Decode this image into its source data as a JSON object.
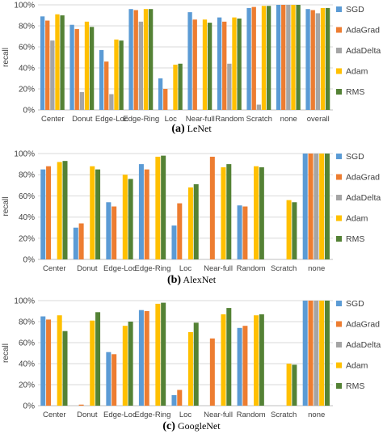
{
  "series_names": [
    "SGD",
    "AdaGrad",
    "AdaDelta",
    "Adam",
    "RMS"
  ],
  "colors": {
    "SGD": "#5b9bd5",
    "AdaGrad": "#ed7d31",
    "AdaDelta": "#a5a5a5",
    "Adam": "#ffc000",
    "RMS": "#548235",
    "grid": "#d9d9d9",
    "axis": "#bfbfbf",
    "text": "#404040"
  },
  "chart_data": [
    {
      "type": "bar",
      "caption_letter": "(a)",
      "caption_name": "LeNet",
      "ylabel": "recall",
      "ylim": [
        0,
        100
      ],
      "yticks": [
        "0%",
        "20%",
        "40%",
        "60%",
        "80%",
        "100%"
      ],
      "grid": true,
      "legend_position": "right",
      "categories": [
        "Center",
        "Donut",
        "Edge-Loc",
        "Edge-Ring",
        "Loc",
        "Near-full",
        "Random",
        "Scratch",
        "none",
        "overall"
      ],
      "series": [
        {
          "name": "SGD",
          "values": [
            89,
            81,
            57,
            96,
            30,
            93,
            88,
            97,
            100,
            96
          ]
        },
        {
          "name": "AdaGrad",
          "values": [
            85,
            77,
            46,
            95,
            20,
            86,
            84,
            98,
            100,
            95
          ]
        },
        {
          "name": "AdaDelta",
          "values": [
            66,
            17,
            15,
            84,
            0,
            0,
            44,
            5,
            100,
            92
          ]
        },
        {
          "name": "Adam",
          "values": [
            91,
            84,
            67,
            96,
            43,
            86,
            88,
            99,
            100,
            97
          ]
        },
        {
          "name": "RMS",
          "values": [
            90,
            79,
            66,
            96,
            44,
            83,
            87,
            99,
            100,
            97
          ]
        }
      ]
    },
    {
      "type": "bar",
      "caption_letter": "(b)",
      "caption_name": "AlexNet",
      "ylabel": "recall",
      "ylim": [
        0,
        100
      ],
      "yticks": [
        "0%",
        "20%",
        "40%",
        "60%",
        "80%",
        "100%"
      ],
      "grid": true,
      "legend_position": "right",
      "categories": [
        "Center",
        "Donut",
        "Edge-Loc",
        "Edge-Ring",
        "Loc",
        "Near-full",
        "Random",
        "Scratch",
        "none"
      ],
      "series": [
        {
          "name": "SGD",
          "values": [
            85,
            30,
            54,
            90,
            32,
            0,
            51,
            0,
            100
          ]
        },
        {
          "name": "AdaGrad",
          "values": [
            88,
            34,
            50,
            85,
            53,
            97,
            50,
            0,
            100
          ]
        },
        {
          "name": "AdaDelta",
          "values": [
            0,
            0,
            0,
            0,
            0,
            0,
            0,
            0,
            100
          ]
        },
        {
          "name": "Adam",
          "values": [
            92,
            88,
            80,
            97,
            68,
            87,
            88,
            56,
            100
          ]
        },
        {
          "name": "RMS",
          "values": [
            93,
            85,
            76,
            98,
            71,
            90,
            87,
            54,
            100
          ]
        }
      ]
    },
    {
      "type": "bar",
      "caption_letter": "(c)",
      "caption_name": "GoogleNet",
      "ylabel": "recall",
      "ylim": [
        0,
        100
      ],
      "yticks": [
        "0%",
        "20%",
        "40%",
        "60%",
        "80%",
        "100%"
      ],
      "grid": true,
      "legend_position": "right",
      "categories": [
        "Center",
        "Donut",
        "Edge-Loc",
        "Edge-Ring",
        "Loc",
        "Near-full",
        "Random",
        "Scratch",
        "none"
      ],
      "series": [
        {
          "name": "SGD",
          "values": [
            85,
            0,
            51,
            91,
            10,
            0,
            74,
            0,
            100
          ]
        },
        {
          "name": "AdaGrad",
          "values": [
            82,
            1,
            49,
            90,
            15,
            64,
            76,
            0,
            100
          ]
        },
        {
          "name": "AdaDelta",
          "values": [
            0,
            0,
            0,
            0,
            0,
            0,
            0,
            0,
            100
          ]
        },
        {
          "name": "Adam",
          "values": [
            86,
            81,
            76,
            97,
            70,
            87,
            86,
            40,
            100
          ]
        },
        {
          "name": "RMS",
          "values": [
            71,
            89,
            80,
            98,
            79,
            93,
            87,
            39,
            100
          ]
        }
      ]
    }
  ]
}
